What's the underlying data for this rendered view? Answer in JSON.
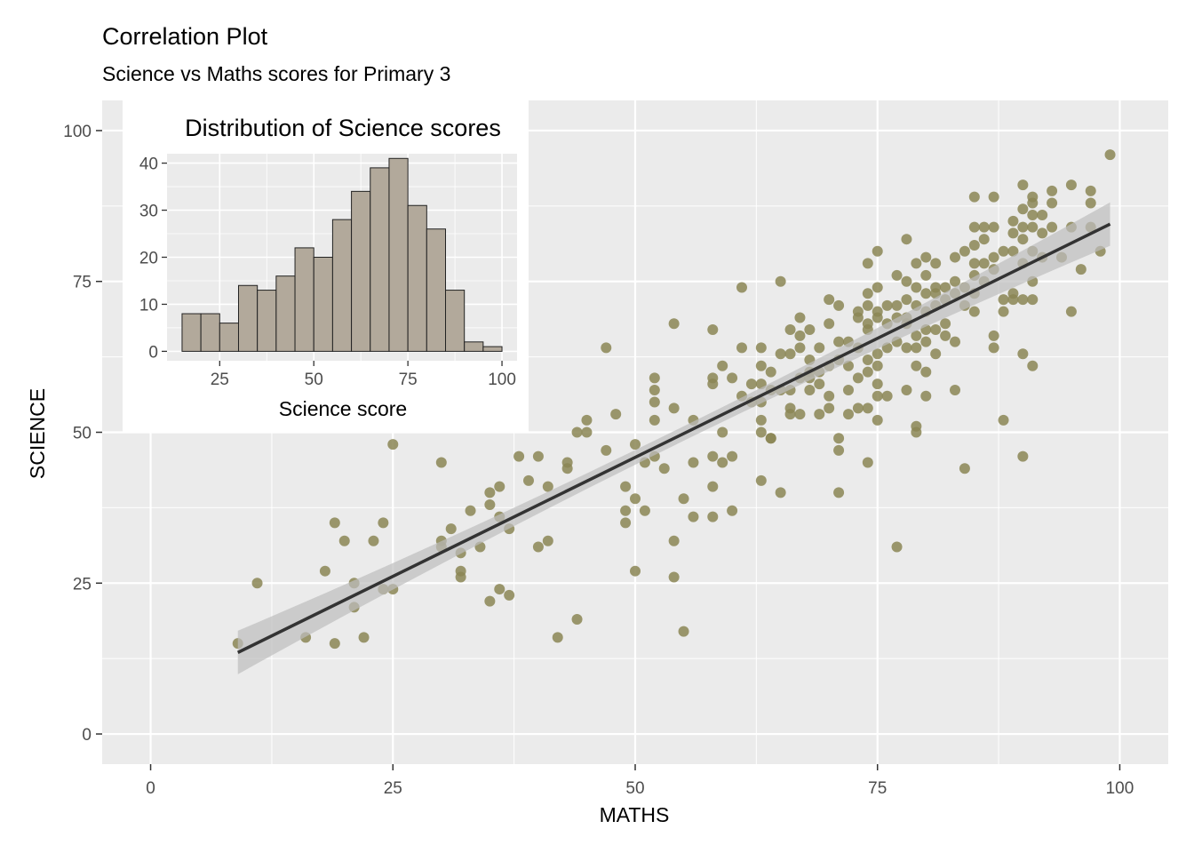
{
  "chart_data": [
    {
      "type": "scatter",
      "title": "Correlation Plot",
      "subtitle": "Science vs Maths scores for Primary 3",
      "xlabel": "MATHS",
      "ylabel": "SCIENCE",
      "xlim": [
        -5,
        105
      ],
      "ylim": [
        -5,
        105
      ],
      "xticks": [
        0,
        25,
        50,
        75,
        100
      ],
      "yticks": [
        0,
        25,
        50,
        75,
        100
      ],
      "grid": true,
      "point_color": "#8b8655",
      "trend_line": {
        "from": [
          9,
          13.5
        ],
        "to": [
          99,
          84.5
        ],
        "color": "#333333",
        "band_color": "#bdbdbd"
      },
      "points": [
        [
          9,
          15
        ],
        [
          11,
          25
        ],
        [
          16,
          16
        ],
        [
          18,
          27
        ],
        [
          19,
          15
        ],
        [
          19,
          35
        ],
        [
          20,
          32
        ],
        [
          21,
          25
        ],
        [
          21,
          21
        ],
        [
          22,
          16
        ],
        [
          23,
          32
        ],
        [
          24,
          35
        ],
        [
          24,
          24
        ],
        [
          25,
          24
        ],
        [
          25,
          48
        ],
        [
          30,
          45
        ],
        [
          30,
          31
        ],
        [
          30,
          32
        ],
        [
          31,
          34
        ],
        [
          32,
          30
        ],
        [
          32,
          27
        ],
        [
          32,
          26
        ],
        [
          33,
          37
        ],
        [
          34,
          31
        ],
        [
          35,
          38
        ],
        [
          35,
          40
        ],
        [
          35,
          22
        ],
        [
          36,
          41
        ],
        [
          36,
          36
        ],
        [
          36,
          24
        ],
        [
          37,
          34
        ],
        [
          37,
          23
        ],
        [
          38,
          46
        ],
        [
          39,
          42
        ],
        [
          40,
          46
        ],
        [
          40,
          31
        ],
        [
          41,
          41
        ],
        [
          41,
          32
        ],
        [
          42,
          16
        ],
        [
          43,
          45
        ],
        [
          43,
          44
        ],
        [
          44,
          50
        ],
        [
          44,
          19
        ],
        [
          45,
          52
        ],
        [
          45,
          50
        ],
        [
          47,
          64
        ],
        [
          47,
          47
        ],
        [
          48,
          53
        ],
        [
          49,
          41
        ],
        [
          49,
          37
        ],
        [
          49,
          35
        ],
        [
          50,
          48
        ],
        [
          50,
          39
        ],
        [
          50,
          27
        ],
        [
          51,
          45
        ],
        [
          51,
          37
        ],
        [
          52,
          59
        ],
        [
          52,
          57
        ],
        [
          52,
          55
        ],
        [
          52,
          52
        ],
        [
          52,
          46
        ],
        [
          53,
          44
        ],
        [
          54,
          68
        ],
        [
          54,
          54
        ],
        [
          54,
          32
        ],
        [
          54,
          26
        ],
        [
          55,
          39
        ],
        [
          55,
          17
        ],
        [
          56,
          52
        ],
        [
          56,
          45
        ],
        [
          56,
          36
        ],
        [
          58,
          67
        ],
        [
          58,
          59
        ],
        [
          58,
          58
        ],
        [
          58,
          46
        ],
        [
          58,
          41
        ],
        [
          58,
          36
        ],
        [
          59,
          61
        ],
        [
          59,
          50
        ],
        [
          59,
          45
        ],
        [
          60,
          59
        ],
        [
          60,
          46
        ],
        [
          60,
          37
        ],
        [
          61,
          74
        ],
        [
          61,
          64
        ],
        [
          61,
          56
        ],
        [
          62,
          58
        ],
        [
          62,
          55
        ],
        [
          63,
          64
        ],
        [
          63,
          61
        ],
        [
          63,
          58
        ],
        [
          63,
          55
        ],
        [
          63,
          52
        ],
        [
          63,
          50
        ],
        [
          63,
          42
        ],
        [
          64,
          60
        ],
        [
          64,
          57
        ],
        [
          64,
          49
        ],
        [
          64,
          49
        ],
        [
          65,
          75
        ],
        [
          65,
          63
        ],
        [
          65,
          57
        ],
        [
          65,
          40
        ],
        [
          66,
          67
        ],
        [
          66,
          63
        ],
        [
          66,
          57
        ],
        [
          66,
          54
        ],
        [
          66,
          53
        ],
        [
          67,
          69
        ],
        [
          67,
          66
        ],
        [
          67,
          64
        ],
        [
          67,
          59
        ],
        [
          67,
          53
        ],
        [
          68,
          67
        ],
        [
          68,
          62
        ],
        [
          68,
          60
        ],
        [
          68,
          59
        ],
        [
          68,
          57
        ],
        [
          69,
          64
        ],
        [
          69,
          60
        ],
        [
          69,
          58
        ],
        [
          69,
          53
        ],
        [
          70,
          72
        ],
        [
          70,
          68
        ],
        [
          70,
          61
        ],
        [
          70,
          56
        ],
        [
          70,
          54
        ],
        [
          71,
          71
        ],
        [
          71,
          65
        ],
        [
          71,
          62
        ],
        [
          71,
          49
        ],
        [
          71,
          47
        ],
        [
          71,
          40
        ],
        [
          72,
          65
        ],
        [
          72,
          61
        ],
        [
          72,
          57
        ],
        [
          72,
          53
        ],
        [
          73,
          70
        ],
        [
          73,
          69
        ],
        [
          73,
          64
        ],
        [
          73,
          59
        ],
        [
          73,
          54
        ],
        [
          74,
          78
        ],
        [
          74,
          73
        ],
        [
          74,
          71
        ],
        [
          74,
          68
        ],
        [
          74,
          67
        ],
        [
          74,
          62
        ],
        [
          74,
          60
        ],
        [
          74,
          54
        ],
        [
          74,
          45
        ],
        [
          75,
          80
        ],
        [
          75,
          74
        ],
        [
          75,
          70
        ],
        [
          75,
          69
        ],
        [
          75,
          63
        ],
        [
          75,
          61
        ],
        [
          75,
          58
        ],
        [
          75,
          56
        ],
        [
          75,
          52
        ],
        [
          76,
          71
        ],
        [
          76,
          68
        ],
        [
          76,
          64
        ],
        [
          76,
          56
        ],
        [
          77,
          76
        ],
        [
          77,
          71
        ],
        [
          77,
          69
        ],
        [
          77,
          65
        ],
        [
          77,
          31
        ],
        [
          78,
          82
        ],
        [
          78,
          75
        ],
        [
          78,
          72
        ],
        [
          78,
          69
        ],
        [
          78,
          68
        ],
        [
          78,
          64
        ],
        [
          78,
          57
        ],
        [
          79,
          78
        ],
        [
          79,
          74
        ],
        [
          79,
          71
        ],
        [
          79,
          66
        ],
        [
          79,
          64
        ],
        [
          79,
          61
        ],
        [
          79,
          51
        ],
        [
          79,
          50
        ],
        [
          80,
          79
        ],
        [
          80,
          76
        ],
        [
          80,
          73
        ],
        [
          80,
          70
        ],
        [
          80,
          67
        ],
        [
          80,
          65
        ],
        [
          80,
          60
        ],
        [
          80,
          56
        ],
        [
          81,
          78
        ],
        [
          81,
          74
        ],
        [
          81,
          73
        ],
        [
          81,
          71
        ],
        [
          81,
          67
        ],
        [
          81,
          63
        ],
        [
          82,
          74
        ],
        [
          82,
          72
        ],
        [
          82,
          68
        ],
        [
          82,
          66
        ],
        [
          83,
          79
        ],
        [
          83,
          75
        ],
        [
          83,
          73
        ],
        [
          83,
          65
        ],
        [
          83,
          57
        ],
        [
          84,
          80
        ],
        [
          84,
          74
        ],
        [
          84,
          71
        ],
        [
          84,
          44
        ],
        [
          85,
          89
        ],
        [
          85,
          84
        ],
        [
          85,
          81
        ],
        [
          85,
          78
        ],
        [
          85,
          76
        ],
        [
          85,
          73
        ],
        [
          85,
          70
        ],
        [
          86,
          84
        ],
        [
          86,
          82
        ],
        [
          86,
          78
        ],
        [
          86,
          75
        ],
        [
          87,
          89
        ],
        [
          87,
          84
        ],
        [
          87,
          79
        ],
        [
          87,
          77
        ],
        [
          87,
          66
        ],
        [
          87,
          64
        ],
        [
          88,
          80
        ],
        [
          88,
          72
        ],
        [
          88,
          70
        ],
        [
          88,
          52
        ],
        [
          89,
          85
        ],
        [
          89,
          83
        ],
        [
          89,
          80
        ],
        [
          89,
          73
        ],
        [
          89,
          72
        ],
        [
          90,
          91
        ],
        [
          90,
          87
        ],
        [
          90,
          84
        ],
        [
          90,
          82
        ],
        [
          90,
          78
        ],
        [
          90,
          72
        ],
        [
          90,
          63
        ],
        [
          90,
          46
        ],
        [
          91,
          89
        ],
        [
          91,
          88
        ],
        [
          91,
          86
        ],
        [
          91,
          84
        ],
        [
          91,
          80
        ],
        [
          91,
          75
        ],
        [
          91,
          72
        ],
        [
          91,
          61
        ],
        [
          92,
          86
        ],
        [
          92,
          83
        ],
        [
          92,
          79
        ],
        [
          93,
          90
        ],
        [
          93,
          88
        ],
        [
          93,
          84
        ],
        [
          94,
          79
        ],
        [
          95,
          91
        ],
        [
          95,
          84
        ],
        [
          95,
          70
        ],
        [
          96,
          77
        ],
        [
          97,
          90
        ],
        [
          97,
          88
        ],
        [
          97,
          84
        ],
        [
          98,
          80
        ],
        [
          99,
          96
        ]
      ]
    },
    {
      "type": "bar",
      "title": "Distribution of Science scores",
      "xlabel": "Science score",
      "ylabel": "",
      "xlim": [
        11,
        104
      ],
      "ylim": [
        -2,
        42
      ],
      "xticks": [
        25,
        50,
        75,
        100
      ],
      "yticks": [
        0,
        10,
        20,
        30,
        40
      ],
      "bin_width": 5,
      "bin_starts": [
        15,
        20,
        25,
        30,
        35,
        40,
        45,
        50,
        55,
        60,
        65,
        70,
        75,
        80,
        85,
        90,
        95
      ],
      "counts": [
        8,
        8,
        6,
        14,
        13,
        16,
        22,
        20,
        28,
        34,
        39,
        41,
        31,
        26,
        13,
        2,
        1
      ],
      "bar_color": "#b2a99b",
      "edge_color": "#222222"
    }
  ]
}
